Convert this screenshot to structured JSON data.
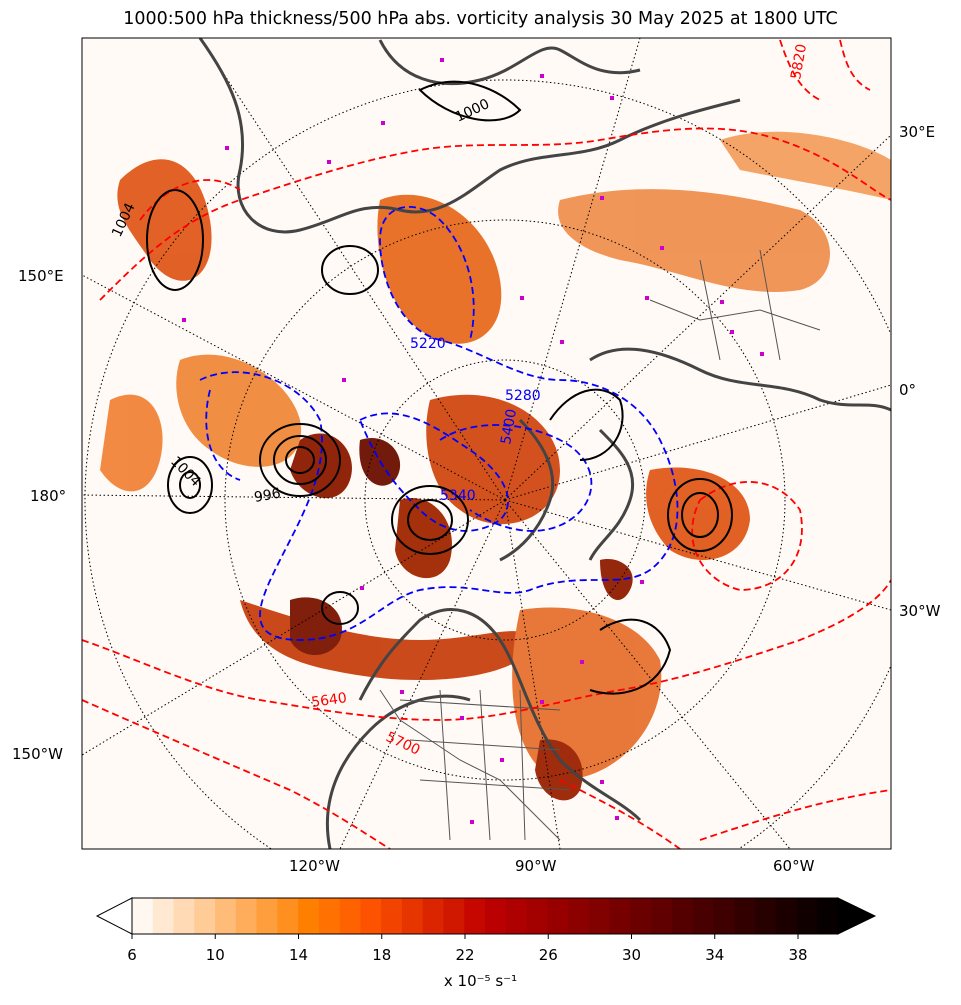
{
  "title": "1000:500 hPa thickness/500 hPa abs. vorticity analysis 30 May 2025 at 1800 UTC",
  "map": {
    "bottom_lon_labels": [
      "120°W",
      "90°W",
      "60°W"
    ],
    "left_lat_labels": [
      "150°E",
      "180°",
      "150°W"
    ],
    "right_lat_labels": [
      "30°E",
      "0°",
      "30°W"
    ],
    "thickness_contour_labels": [
      "5220",
      "5280",
      "5340",
      "5400",
      "5640",
      "5700",
      "5820"
    ],
    "mslp_contour_labels": [
      "996",
      "1000",
      "1004"
    ],
    "colors": {
      "thickness_cold": "#0000ff",
      "thickness_warm": "#ff0000",
      "mslp": "#000000",
      "coastline": "#444444",
      "station_marker": "#cc00cc"
    }
  },
  "colorbar": {
    "ticks": [
      "6",
      "10",
      "14",
      "18",
      "22",
      "26",
      "30",
      "34",
      "38"
    ],
    "label": "x 10⁻⁵ s⁻¹",
    "colormap": "gist_heat_r"
  }
}
